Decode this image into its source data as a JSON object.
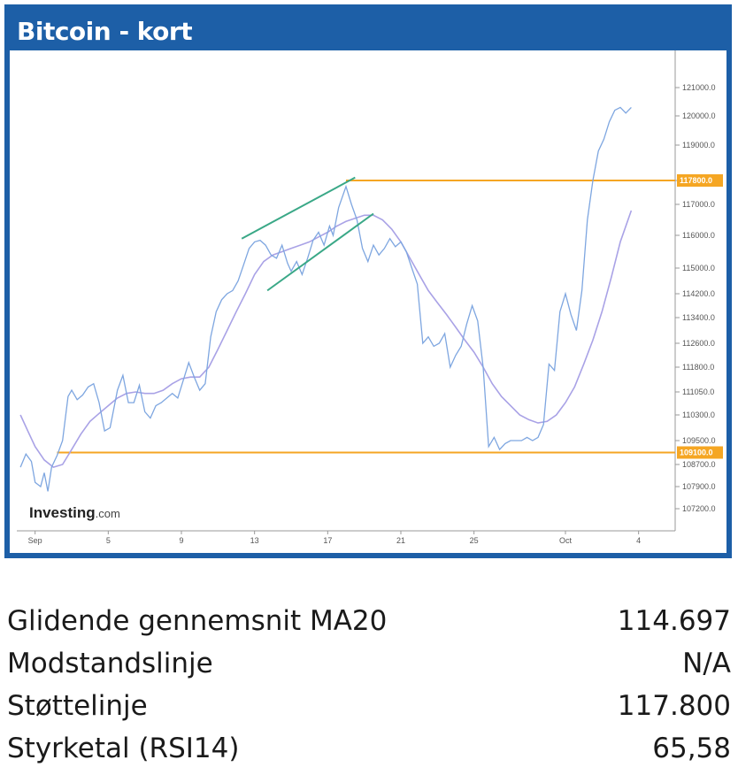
{
  "header": {
    "title": "Bitcoin - kort"
  },
  "colors": {
    "header_bg": "#1d5fa7",
    "price_line": "#7ea6e0",
    "ma_line": "#a9a2e6",
    "level_line": "#f5a623",
    "trend_line": "#3aa887",
    "axis": "#999999"
  },
  "chart_data": {
    "type": "line",
    "title": "",
    "xlabel": "",
    "ylabel": "",
    "ylim": [
      106700,
      122000
    ],
    "x_ticks": [
      "Sep",
      "5",
      "9",
      "13",
      "17",
      "21",
      "25",
      "Oct",
      "4"
    ],
    "x_tick_days": [
      1,
      5,
      9,
      13,
      17,
      21,
      25,
      30,
      34
    ],
    "y_ticks": [
      107200,
      107900,
      108700,
      109500,
      110300,
      111050,
      111800,
      112600,
      113400,
      114200,
      115000,
      116000,
      117000,
      117800,
      119000,
      120000,
      121000
    ],
    "y_tick_labels": [
      "107200.0",
      "107900.0",
      "108700.0",
      "109500.0",
      "110300.0",
      "111050.0",
      "111800.0",
      "112600.0",
      "113400.0",
      "114200.0",
      "115000.0",
      "116000.0",
      "117000.0",
      "117800.0",
      "119000.0",
      "120000.0",
      "121000.0"
    ],
    "series": [
      {
        "key": "price",
        "points": [
          [
            0.2,
            108600
          ],
          [
            0.5,
            109050
          ],
          [
            0.8,
            108800
          ],
          [
            1.0,
            108050
          ],
          [
            1.3,
            107900
          ],
          [
            1.5,
            108400
          ],
          [
            1.7,
            107750
          ],
          [
            1.9,
            108600
          ],
          [
            2.2,
            109000
          ],
          [
            2.5,
            109500
          ],
          [
            2.8,
            110900
          ],
          [
            3.0,
            111100
          ],
          [
            3.3,
            110800
          ],
          [
            3.6,
            110950
          ],
          [
            3.9,
            111200
          ],
          [
            4.2,
            111300
          ],
          [
            4.5,
            110700
          ],
          [
            4.8,
            109800
          ],
          [
            5.1,
            109900
          ],
          [
            5.5,
            111100
          ],
          [
            5.8,
            111550
          ],
          [
            6.1,
            110700
          ],
          [
            6.4,
            110700
          ],
          [
            6.7,
            111250
          ],
          [
            7.0,
            110400
          ],
          [
            7.3,
            110200
          ],
          [
            7.6,
            110600
          ],
          [
            7.9,
            110700
          ],
          [
            8.2,
            110850
          ],
          [
            8.5,
            111000
          ],
          [
            8.8,
            110850
          ],
          [
            9.1,
            111400
          ],
          [
            9.4,
            111950
          ],
          [
            9.7,
            111500
          ],
          [
            10.0,
            111100
          ],
          [
            10.3,
            111300
          ],
          [
            10.6,
            112800
          ],
          [
            10.9,
            113600
          ],
          [
            11.2,
            114000
          ],
          [
            11.5,
            114200
          ],
          [
            11.8,
            114300
          ],
          [
            12.1,
            114600
          ],
          [
            12.4,
            115100
          ],
          [
            12.7,
            115600
          ],
          [
            13.0,
            115800
          ],
          [
            13.3,
            115850
          ],
          [
            13.6,
            115700
          ],
          [
            13.9,
            115400
          ],
          [
            14.2,
            115300
          ],
          [
            14.5,
            115700
          ],
          [
            14.8,
            115150
          ],
          [
            15.0,
            114900
          ],
          [
            15.3,
            115200
          ],
          [
            15.6,
            114800
          ],
          [
            15.9,
            115300
          ],
          [
            16.2,
            115850
          ],
          [
            16.5,
            116100
          ],
          [
            16.8,
            115700
          ],
          [
            17.1,
            116300
          ],
          [
            17.3,
            116000
          ],
          [
            17.6,
            116900
          ],
          [
            18.0,
            117600
          ],
          [
            18.3,
            117000
          ],
          [
            18.6,
            116500
          ],
          [
            18.9,
            115600
          ],
          [
            19.2,
            115200
          ],
          [
            19.5,
            115700
          ],
          [
            19.8,
            115400
          ],
          [
            20.1,
            115600
          ],
          [
            20.4,
            115900
          ],
          [
            20.7,
            115650
          ],
          [
            21.0,
            115800
          ],
          [
            21.3,
            115500
          ],
          [
            21.6,
            115000
          ],
          [
            21.9,
            114500
          ],
          [
            22.2,
            112600
          ],
          [
            22.5,
            112800
          ],
          [
            22.8,
            112500
          ],
          [
            23.1,
            112600
          ],
          [
            23.4,
            112900
          ],
          [
            23.7,
            111800
          ],
          [
            24.0,
            112200
          ],
          [
            24.3,
            112500
          ],
          [
            24.6,
            113200
          ],
          [
            24.9,
            113800
          ],
          [
            25.2,
            113300
          ],
          [
            25.5,
            111800
          ],
          [
            25.8,
            109300
          ],
          [
            26.1,
            109600
          ],
          [
            26.4,
            109200
          ],
          [
            26.7,
            109400
          ],
          [
            27.0,
            109500
          ],
          [
            27.3,
            109500
          ],
          [
            27.6,
            109500
          ],
          [
            27.9,
            109600
          ],
          [
            28.2,
            109500
          ],
          [
            28.5,
            109600
          ],
          [
            28.8,
            110000
          ],
          [
            29.1,
            111900
          ],
          [
            29.4,
            111700
          ],
          [
            29.7,
            113600
          ],
          [
            30.0,
            114200
          ],
          [
            30.3,
            113500
          ],
          [
            30.6,
            113000
          ],
          [
            30.9,
            114300
          ],
          [
            31.2,
            116500
          ],
          [
            31.5,
            117800
          ],
          [
            31.8,
            118800
          ],
          [
            32.1,
            119200
          ],
          [
            32.4,
            119800
          ],
          [
            32.7,
            120200
          ],
          [
            33.0,
            120300
          ],
          [
            33.3,
            120100
          ],
          [
            33.6,
            120300
          ]
        ]
      },
      {
        "key": "ma",
        "points": [
          [
            0.2,
            110300
          ],
          [
            0.6,
            109800
          ],
          [
            1.0,
            109300
          ],
          [
            1.5,
            108850
          ],
          [
            2.0,
            108600
          ],
          [
            2.5,
            108700
          ],
          [
            3.0,
            109200
          ],
          [
            3.5,
            109700
          ],
          [
            4.0,
            110100
          ],
          [
            4.5,
            110350
          ],
          [
            5.0,
            110600
          ],
          [
            5.5,
            110850
          ],
          [
            6.0,
            111000
          ],
          [
            6.5,
            111050
          ],
          [
            7.0,
            111000
          ],
          [
            7.5,
            111000
          ],
          [
            8.0,
            111100
          ],
          [
            8.5,
            111300
          ],
          [
            9.0,
            111450
          ],
          [
            9.5,
            111500
          ],
          [
            10.0,
            111500
          ],
          [
            10.5,
            111800
          ],
          [
            11.0,
            112400
          ],
          [
            11.5,
            113000
          ],
          [
            12.0,
            113600
          ],
          [
            12.5,
            114200
          ],
          [
            13.0,
            114800
          ],
          [
            13.5,
            115200
          ],
          [
            14.0,
            115400
          ],
          [
            14.5,
            115500
          ],
          [
            15.0,
            115600
          ],
          [
            15.5,
            115700
          ],
          [
            16.0,
            115800
          ],
          [
            16.5,
            115950
          ],
          [
            17.0,
            116100
          ],
          [
            17.5,
            116300
          ],
          [
            18.0,
            116450
          ],
          [
            18.5,
            116550
          ],
          [
            19.0,
            116650
          ],
          [
            19.5,
            116650
          ],
          [
            20.0,
            116500
          ],
          [
            20.5,
            116200
          ],
          [
            21.0,
            115800
          ],
          [
            21.5,
            115300
          ],
          [
            22.0,
            114800
          ],
          [
            22.5,
            114300
          ],
          [
            23.0,
            113900
          ],
          [
            23.5,
            113500
          ],
          [
            24.0,
            113100
          ],
          [
            24.5,
            112700
          ],
          [
            25.0,
            112300
          ],
          [
            25.5,
            111800
          ],
          [
            26.0,
            111300
          ],
          [
            26.5,
            110900
          ],
          [
            27.0,
            110600
          ],
          [
            27.5,
            110300
          ],
          [
            28.0,
            110150
          ],
          [
            28.5,
            110050
          ],
          [
            29.0,
            110100
          ],
          [
            29.5,
            110300
          ],
          [
            30.0,
            110700
          ],
          [
            30.5,
            111200
          ],
          [
            31.0,
            111900
          ],
          [
            31.5,
            112700
          ],
          [
            32.0,
            113600
          ],
          [
            32.5,
            114700
          ],
          [
            33.0,
            115800
          ],
          [
            33.6,
            116800
          ]
        ]
      }
    ],
    "horizontal_levels": [
      {
        "value": 117800,
        "label": "117800.0",
        "from_day": 18.0
      },
      {
        "value": 109100,
        "label": "109100.0",
        "from_day": 2.2
      }
    ],
    "trend_lines": [
      {
        "from": [
          12.3,
          115900
        ],
        "to": [
          18.5,
          117900
        ]
      },
      {
        "from": [
          13.7,
          114300
        ],
        "to": [
          19.5,
          116700
        ]
      }
    ],
    "watermark": {
      "brand": "Investing",
      "suffix": ".com"
    }
  },
  "stats": [
    {
      "label": "Glidende gennemsnit MA20",
      "value": "114.697"
    },
    {
      "label": "Modstandslinje",
      "value": "N/A"
    },
    {
      "label": "Støttelinje",
      "value": "117.800"
    },
    {
      "label": "Styrketal (RSI14)",
      "value": "65,58"
    }
  ]
}
